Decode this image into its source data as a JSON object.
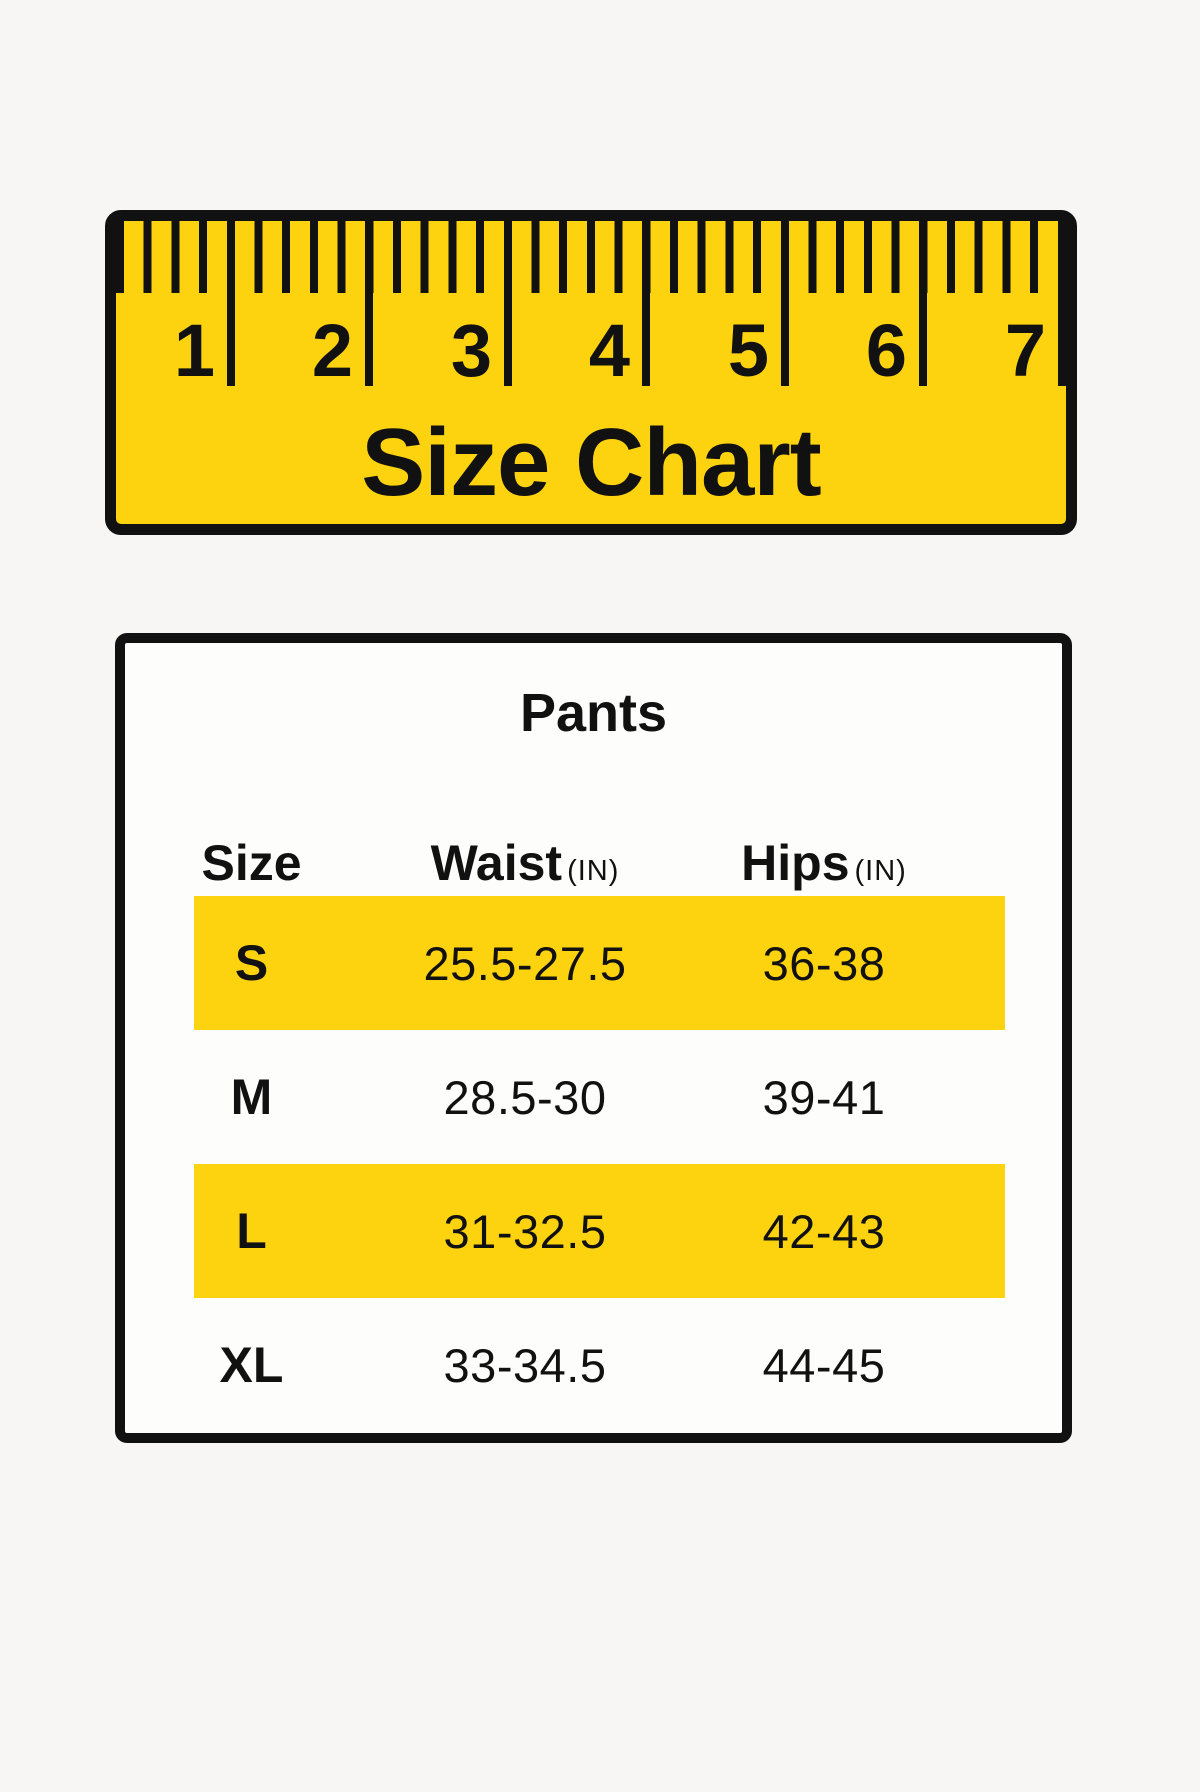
{
  "theme": {
    "yellow": "#fdd30f",
    "ink": "#111111",
    "page_bg": "#f7f6f4",
    "panel_bg": "#fdfdfb"
  },
  "ruler": {
    "title": "Size Chart",
    "numbers": [
      "1",
      "2",
      "3",
      "4",
      "5",
      "6",
      "7"
    ]
  },
  "table": {
    "title": "Pants",
    "columns": [
      {
        "label": "Size",
        "unit": ""
      },
      {
        "label": "Waist",
        "unit": "(IN)"
      },
      {
        "label": "Hips",
        "unit": "(IN)"
      }
    ]
  },
  "chart_data": {
    "type": "table",
    "title": "Pants",
    "columns": [
      "Size",
      "Waist (IN)",
      "Hips (IN)"
    ],
    "rows": [
      [
        "S",
        "25.5-27.5",
        "36-38"
      ],
      [
        "M",
        "28.5-30",
        "39-41"
      ],
      [
        "L",
        "31-32.5",
        "42-43"
      ],
      [
        "XL",
        "33-34.5",
        "44-45"
      ]
    ],
    "highlighted_rows": [
      0,
      2
    ],
    "layout": "header banner ruler graphic above table; alternating yellow row highlights"
  }
}
